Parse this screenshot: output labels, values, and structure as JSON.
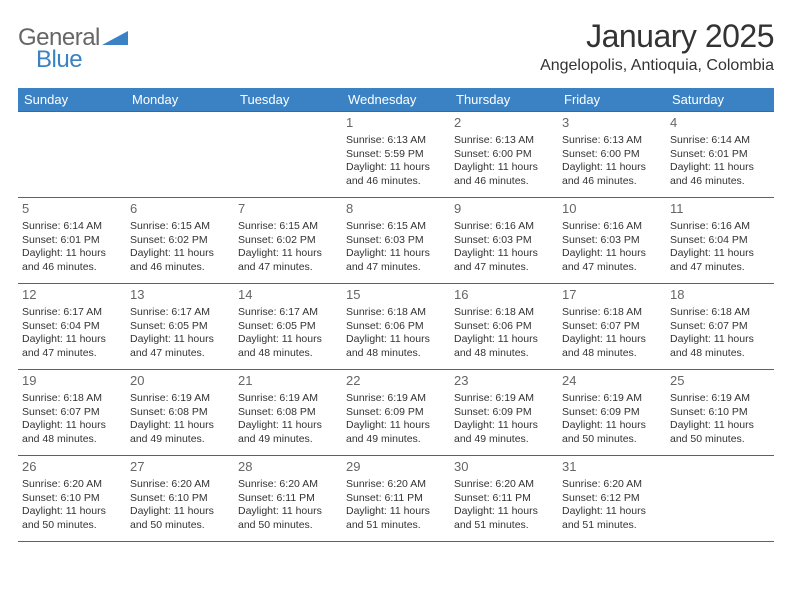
{
  "brand": {
    "word1": "General",
    "word2": "Blue",
    "accent_color": "#3b82c4",
    "gray_color": "#666666"
  },
  "title": "January 2025",
  "location": "Angelopolis, Antioquia, Colombia",
  "header_bg": "#3b82c4",
  "header_fg": "#ffffff",
  "border_color": "#3b6a9a",
  "weekdays": [
    "Sunday",
    "Monday",
    "Tuesday",
    "Wednesday",
    "Thursday",
    "Friday",
    "Saturday"
  ],
  "weeks": [
    [
      {
        "n": "",
        "lines": []
      },
      {
        "n": "",
        "lines": []
      },
      {
        "n": "",
        "lines": []
      },
      {
        "n": "1",
        "lines": [
          "Sunrise: 6:13 AM",
          "Sunset: 5:59 PM",
          "Daylight: 11 hours and 46 minutes."
        ]
      },
      {
        "n": "2",
        "lines": [
          "Sunrise: 6:13 AM",
          "Sunset: 6:00 PM",
          "Daylight: 11 hours and 46 minutes."
        ]
      },
      {
        "n": "3",
        "lines": [
          "Sunrise: 6:13 AM",
          "Sunset: 6:00 PM",
          "Daylight: 11 hours and 46 minutes."
        ]
      },
      {
        "n": "4",
        "lines": [
          "Sunrise: 6:14 AM",
          "Sunset: 6:01 PM",
          "Daylight: 11 hours and 46 minutes."
        ]
      }
    ],
    [
      {
        "n": "5",
        "lines": [
          "Sunrise: 6:14 AM",
          "Sunset: 6:01 PM",
          "Daylight: 11 hours and 46 minutes."
        ]
      },
      {
        "n": "6",
        "lines": [
          "Sunrise: 6:15 AM",
          "Sunset: 6:02 PM",
          "Daylight: 11 hours and 46 minutes."
        ]
      },
      {
        "n": "7",
        "lines": [
          "Sunrise: 6:15 AM",
          "Sunset: 6:02 PM",
          "Daylight: 11 hours and 47 minutes."
        ]
      },
      {
        "n": "8",
        "lines": [
          "Sunrise: 6:15 AM",
          "Sunset: 6:03 PM",
          "Daylight: 11 hours and 47 minutes."
        ]
      },
      {
        "n": "9",
        "lines": [
          "Sunrise: 6:16 AM",
          "Sunset: 6:03 PM",
          "Daylight: 11 hours and 47 minutes."
        ]
      },
      {
        "n": "10",
        "lines": [
          "Sunrise: 6:16 AM",
          "Sunset: 6:03 PM",
          "Daylight: 11 hours and 47 minutes."
        ]
      },
      {
        "n": "11",
        "lines": [
          "Sunrise: 6:16 AM",
          "Sunset: 6:04 PM",
          "Daylight: 11 hours and 47 minutes."
        ]
      }
    ],
    [
      {
        "n": "12",
        "lines": [
          "Sunrise: 6:17 AM",
          "Sunset: 6:04 PM",
          "Daylight: 11 hours and 47 minutes."
        ]
      },
      {
        "n": "13",
        "lines": [
          "Sunrise: 6:17 AM",
          "Sunset: 6:05 PM",
          "Daylight: 11 hours and 47 minutes."
        ]
      },
      {
        "n": "14",
        "lines": [
          "Sunrise: 6:17 AM",
          "Sunset: 6:05 PM",
          "Daylight: 11 hours and 48 minutes."
        ]
      },
      {
        "n": "15",
        "lines": [
          "Sunrise: 6:18 AM",
          "Sunset: 6:06 PM",
          "Daylight: 11 hours and 48 minutes."
        ]
      },
      {
        "n": "16",
        "lines": [
          "Sunrise: 6:18 AM",
          "Sunset: 6:06 PM",
          "Daylight: 11 hours and 48 minutes."
        ]
      },
      {
        "n": "17",
        "lines": [
          "Sunrise: 6:18 AM",
          "Sunset: 6:07 PM",
          "Daylight: 11 hours and 48 minutes."
        ]
      },
      {
        "n": "18",
        "lines": [
          "Sunrise: 6:18 AM",
          "Sunset: 6:07 PM",
          "Daylight: 11 hours and 48 minutes."
        ]
      }
    ],
    [
      {
        "n": "19",
        "lines": [
          "Sunrise: 6:18 AM",
          "Sunset: 6:07 PM",
          "Daylight: 11 hours and 48 minutes."
        ]
      },
      {
        "n": "20",
        "lines": [
          "Sunrise: 6:19 AM",
          "Sunset: 6:08 PM",
          "Daylight: 11 hours and 49 minutes."
        ]
      },
      {
        "n": "21",
        "lines": [
          "Sunrise: 6:19 AM",
          "Sunset: 6:08 PM",
          "Daylight: 11 hours and 49 minutes."
        ]
      },
      {
        "n": "22",
        "lines": [
          "Sunrise: 6:19 AM",
          "Sunset: 6:09 PM",
          "Daylight: 11 hours and 49 minutes."
        ]
      },
      {
        "n": "23",
        "lines": [
          "Sunrise: 6:19 AM",
          "Sunset: 6:09 PM",
          "Daylight: 11 hours and 49 minutes."
        ]
      },
      {
        "n": "24",
        "lines": [
          "Sunrise: 6:19 AM",
          "Sunset: 6:09 PM",
          "Daylight: 11 hours and 50 minutes."
        ]
      },
      {
        "n": "25",
        "lines": [
          "Sunrise: 6:19 AM",
          "Sunset: 6:10 PM",
          "Daylight: 11 hours and 50 minutes."
        ]
      }
    ],
    [
      {
        "n": "26",
        "lines": [
          "Sunrise: 6:20 AM",
          "Sunset: 6:10 PM",
          "Daylight: 11 hours and 50 minutes."
        ]
      },
      {
        "n": "27",
        "lines": [
          "Sunrise: 6:20 AM",
          "Sunset: 6:10 PM",
          "Daylight: 11 hours and 50 minutes."
        ]
      },
      {
        "n": "28",
        "lines": [
          "Sunrise: 6:20 AM",
          "Sunset: 6:11 PM",
          "Daylight: 11 hours and 50 minutes."
        ]
      },
      {
        "n": "29",
        "lines": [
          "Sunrise: 6:20 AM",
          "Sunset: 6:11 PM",
          "Daylight: 11 hours and 51 minutes."
        ]
      },
      {
        "n": "30",
        "lines": [
          "Sunrise: 6:20 AM",
          "Sunset: 6:11 PM",
          "Daylight: 11 hours and 51 minutes."
        ]
      },
      {
        "n": "31",
        "lines": [
          "Sunrise: 6:20 AM",
          "Sunset: 6:12 PM",
          "Daylight: 11 hours and 51 minutes."
        ]
      },
      {
        "n": "",
        "lines": []
      }
    ]
  ]
}
